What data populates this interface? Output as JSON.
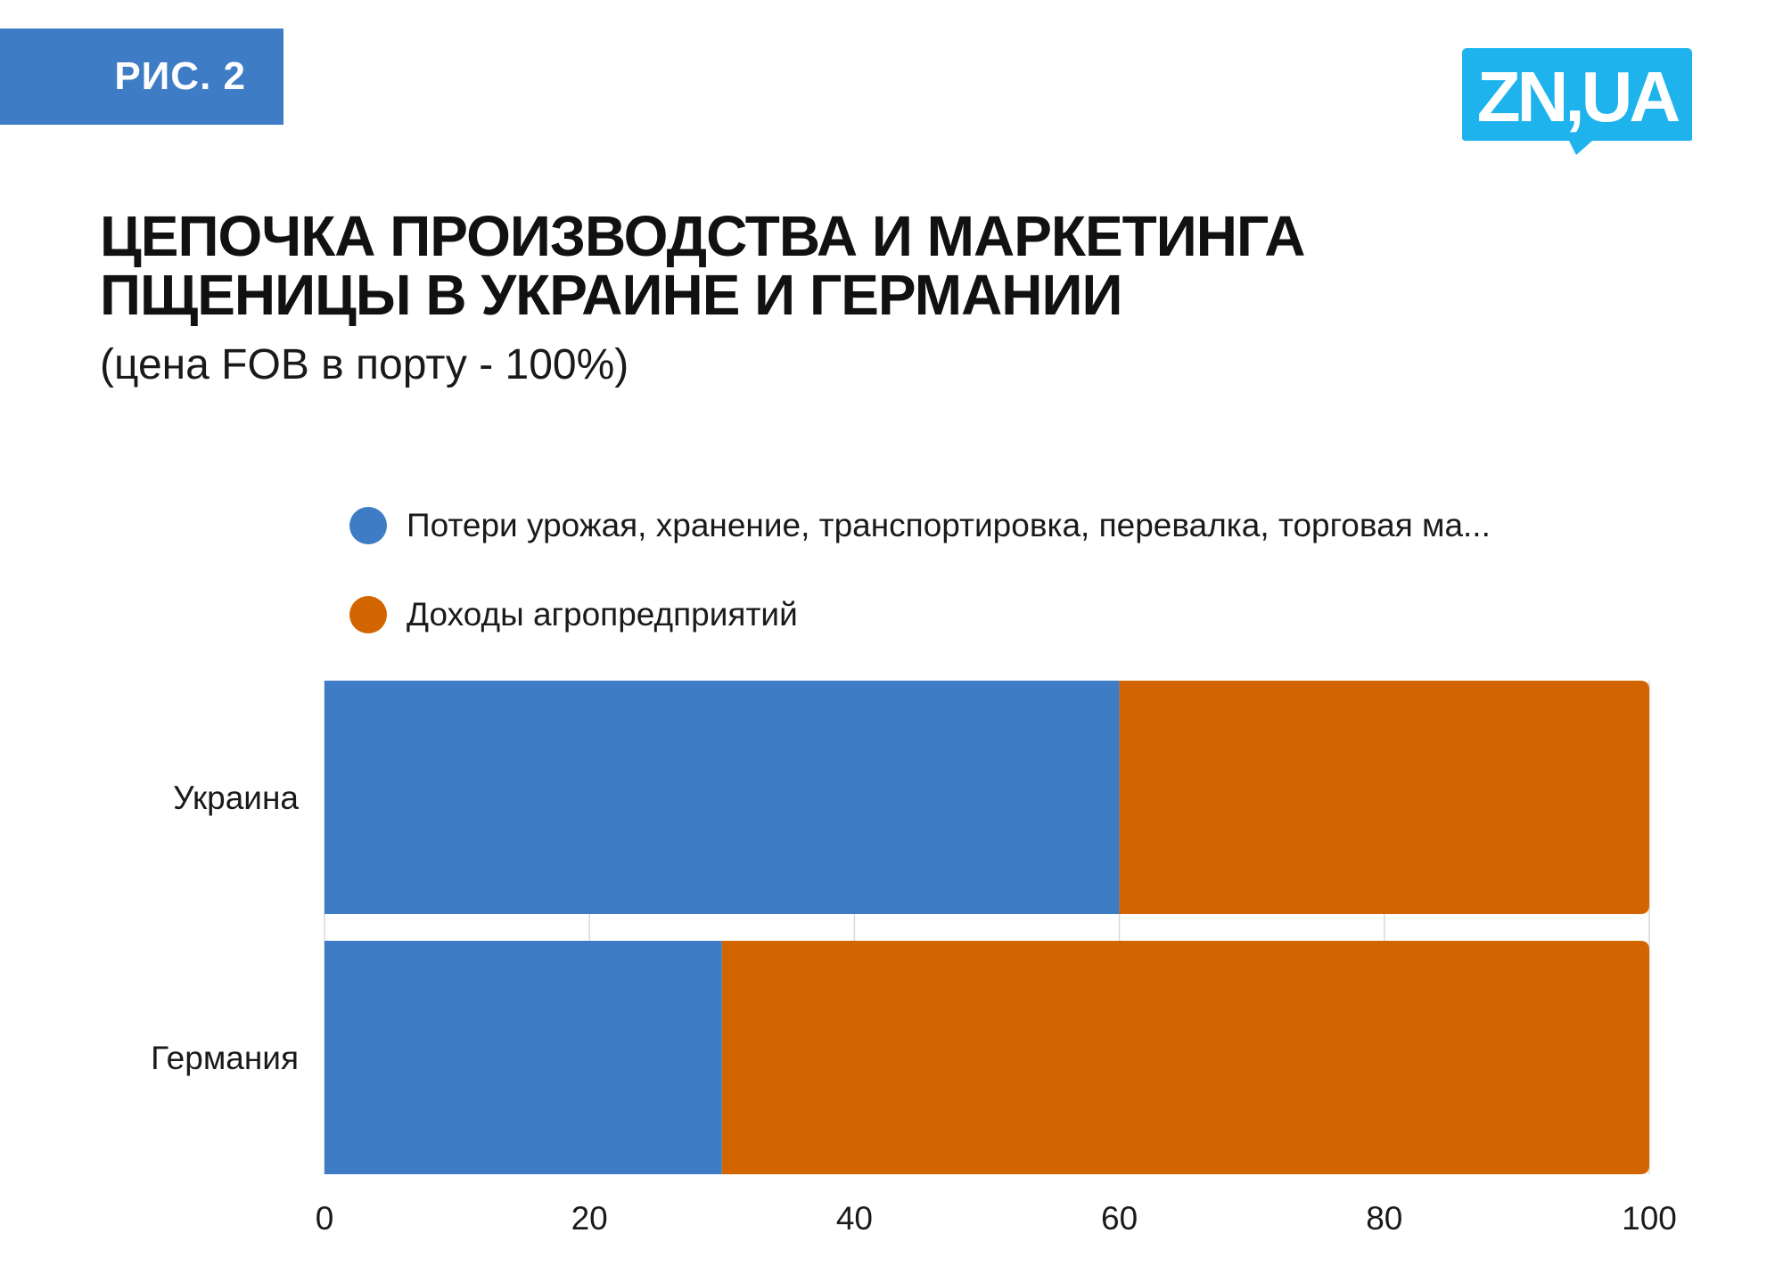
{
  "figure_label": "РИС. 2",
  "logo": {
    "text": "ZN,UA",
    "color": "#1fb3ee",
    "icon": "speech-bubble-logo"
  },
  "title_lines": [
    "ЦЕПОЧКА ПРОИЗВОДСТВА И МАРКЕТИНГА",
    "ПЩЕНИЦЫ В УКРАИНЕ И ГЕРМАНИИ"
  ],
  "subtitle": "(цена FOB в порту - 100%)",
  "chart_data": {
    "type": "bar",
    "orientation": "horizontal",
    "stacked": true,
    "categories": [
      "Украина",
      "Германия"
    ],
    "series": [
      {
        "name": "Потери урожая, хранение, транспортировка, перевалка, торговая ма...",
        "values": [
          60,
          30
        ],
        "color": "#3e7cc6"
      },
      {
        "name": "Доходы агропредприятий",
        "values": [
          40,
          70
        ],
        "color": "#d26500"
      }
    ],
    "xlim": [
      0,
      100
    ],
    "xticks": [
      "0",
      "20",
      "40",
      "60",
      "80",
      "100"
    ],
    "xtick_values": [
      0,
      20,
      40,
      60,
      80,
      100
    ],
    "grid": true,
    "legend_position": "top-left"
  }
}
